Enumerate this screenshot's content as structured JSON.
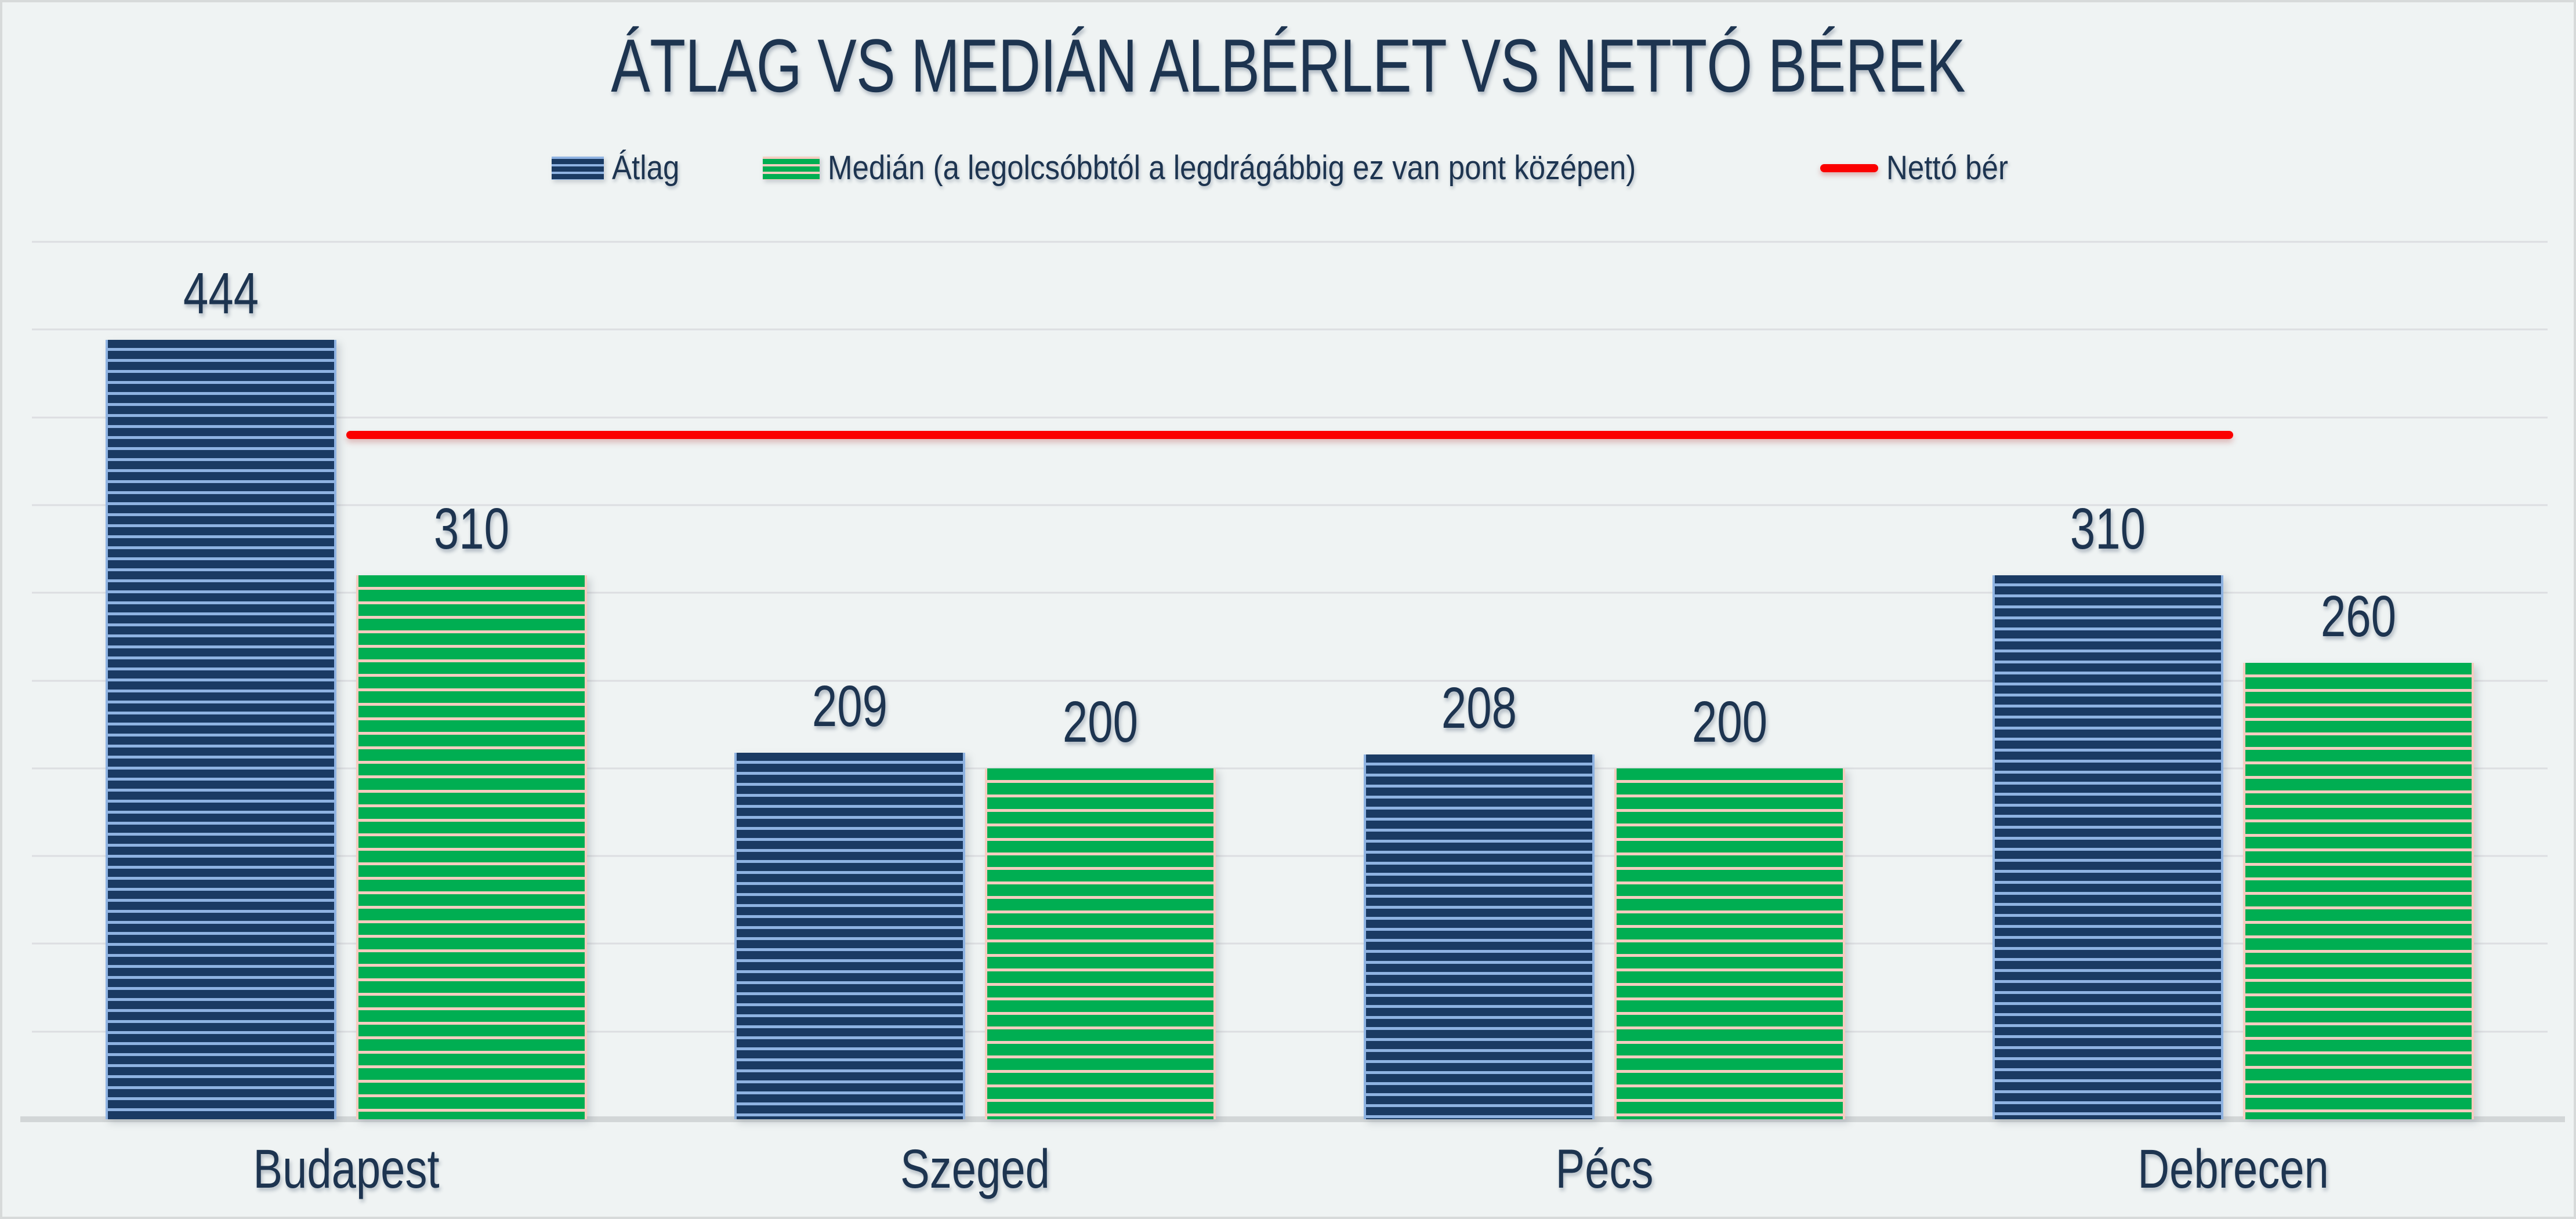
{
  "chart_data": {
    "type": "bar",
    "title": "ÁTLAG VS MEDIÁN ALBÉRLET VS NETTÓ BÉREK",
    "categories": [
      "Budapest",
      "Szeged",
      "Pécs",
      "Debrecen"
    ],
    "series": [
      {
        "name": "Átlag",
        "type": "bar",
        "values": [
          444,
          209,
          208,
          310
        ]
      },
      {
        "name": "Medián (a legolcsóbbtól a legdrágábbig ez van pont középen)",
        "type": "bar",
        "values": [
          310,
          200,
          200,
          260
        ]
      },
      {
        "name": "Nettó bér",
        "type": "line",
        "values": [
          390,
          390,
          390,
          390
        ]
      }
    ],
    "data_labels": true,
    "ylim": [
      0,
      500
    ],
    "gridline_step": 50,
    "grid": true,
    "legend_position": "top",
    "xlabel": "",
    "ylabel": ""
  },
  "colors": {
    "background": "#eff3f3",
    "frame": "#d7dada",
    "text": "#1d3450",
    "gridline": "#dcdee1",
    "axis_line": "#d2d6d7",
    "bar_blue": "#1a3a63",
    "bar_blue_stripe": "#8fb3e2",
    "bar_green": "#00ae52",
    "bar_green_stripe": "#f5cdc0",
    "line_red": "#fb0000"
  }
}
